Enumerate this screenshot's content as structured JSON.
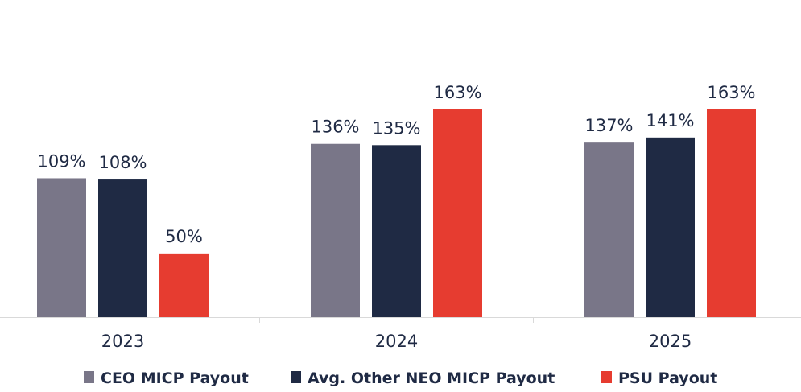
{
  "chart_data": {
    "type": "bar",
    "categories": [
      "2023",
      "2024",
      "2025"
    ],
    "series": [
      {
        "name": "CEO MICP Payout",
        "values": [
          109,
          136,
          137
        ],
        "labels": [
          "109%",
          "136%",
          "137%"
        ],
        "color": "#797688"
      },
      {
        "name": "Avg. Other NEO MICP Payout",
        "values": [
          108,
          135,
          141
        ],
        "labels": [
          "108%",
          "135%",
          "141%"
        ],
        "color": "#1f2a44"
      },
      {
        "name": "PSU Payout",
        "values": [
          50,
          163,
          163
        ],
        "labels": [
          "50%",
          "163%",
          "163%"
        ],
        "color": "#e63c30"
      }
    ],
    "ylim": [
      0,
      180
    ],
    "grid": false,
    "legend_position": "bottom",
    "axis_color": "#d9d9d9",
    "text_color": "#1f2a44"
  }
}
